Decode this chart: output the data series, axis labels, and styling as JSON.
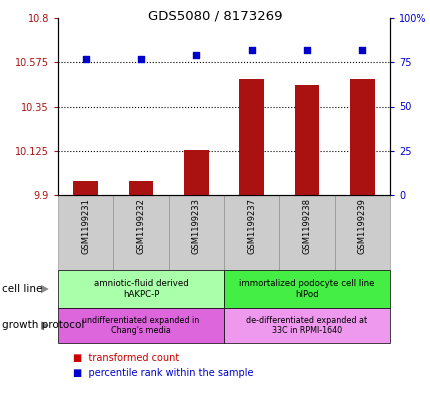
{
  "title": "GDS5080 / 8173269",
  "samples": [
    "GSM1199231",
    "GSM1199232",
    "GSM1199233",
    "GSM1199237",
    "GSM1199238",
    "GSM1199239"
  ],
  "transformed_counts": [
    9.97,
    9.97,
    10.13,
    10.49,
    10.46,
    10.49
  ],
  "percentile_ranks": [
    77,
    77,
    79,
    82,
    82,
    82
  ],
  "ylim_left": [
    9.9,
    10.8
  ],
  "ylim_right": [
    0,
    100
  ],
  "yticks_left": [
    9.9,
    10.125,
    10.35,
    10.575,
    10.8
  ],
  "yticks_right": [
    0,
    25,
    50,
    75,
    100
  ],
  "ytick_labels_left": [
    "9.9",
    "10.125",
    "10.35",
    "10.575",
    "10.8"
  ],
  "ytick_labels_right": [
    "0",
    "25",
    "50",
    "75",
    "100%"
  ],
  "hlines": [
    10.125,
    10.35,
    10.575
  ],
  "bar_color": "#aa1111",
  "dot_color": "#0000cc",
  "cell_line_groups": [
    {
      "label": "amniotic-fluid derived\nhAKPC-P",
      "samples": [
        0,
        1,
        2
      ],
      "color": "#aaffaa"
    },
    {
      "label": "immortalized podocyte cell line\nhIPod",
      "samples": [
        3,
        4,
        5
      ],
      "color": "#44ee44"
    }
  ],
  "growth_protocol_groups": [
    {
      "label": "undifferentiated expanded in\nChang's media",
      "samples": [
        0,
        1,
        2
      ],
      "color": "#dd66dd"
    },
    {
      "label": "de-differentiated expanded at\n33C in RPMI-1640",
      "samples": [
        3,
        4,
        5
      ],
      "color": "#ee99ee"
    }
  ],
  "cell_line_label": "cell line",
  "growth_protocol_label": "growth protocol",
  "bar_color_legend": "#cc0000",
  "dot_color_legend": "#0000cc",
  "plot_bg_color": "#ffffff",
  "xtick_bg_color": "#cccccc",
  "xtick_border_color": "#888888"
}
